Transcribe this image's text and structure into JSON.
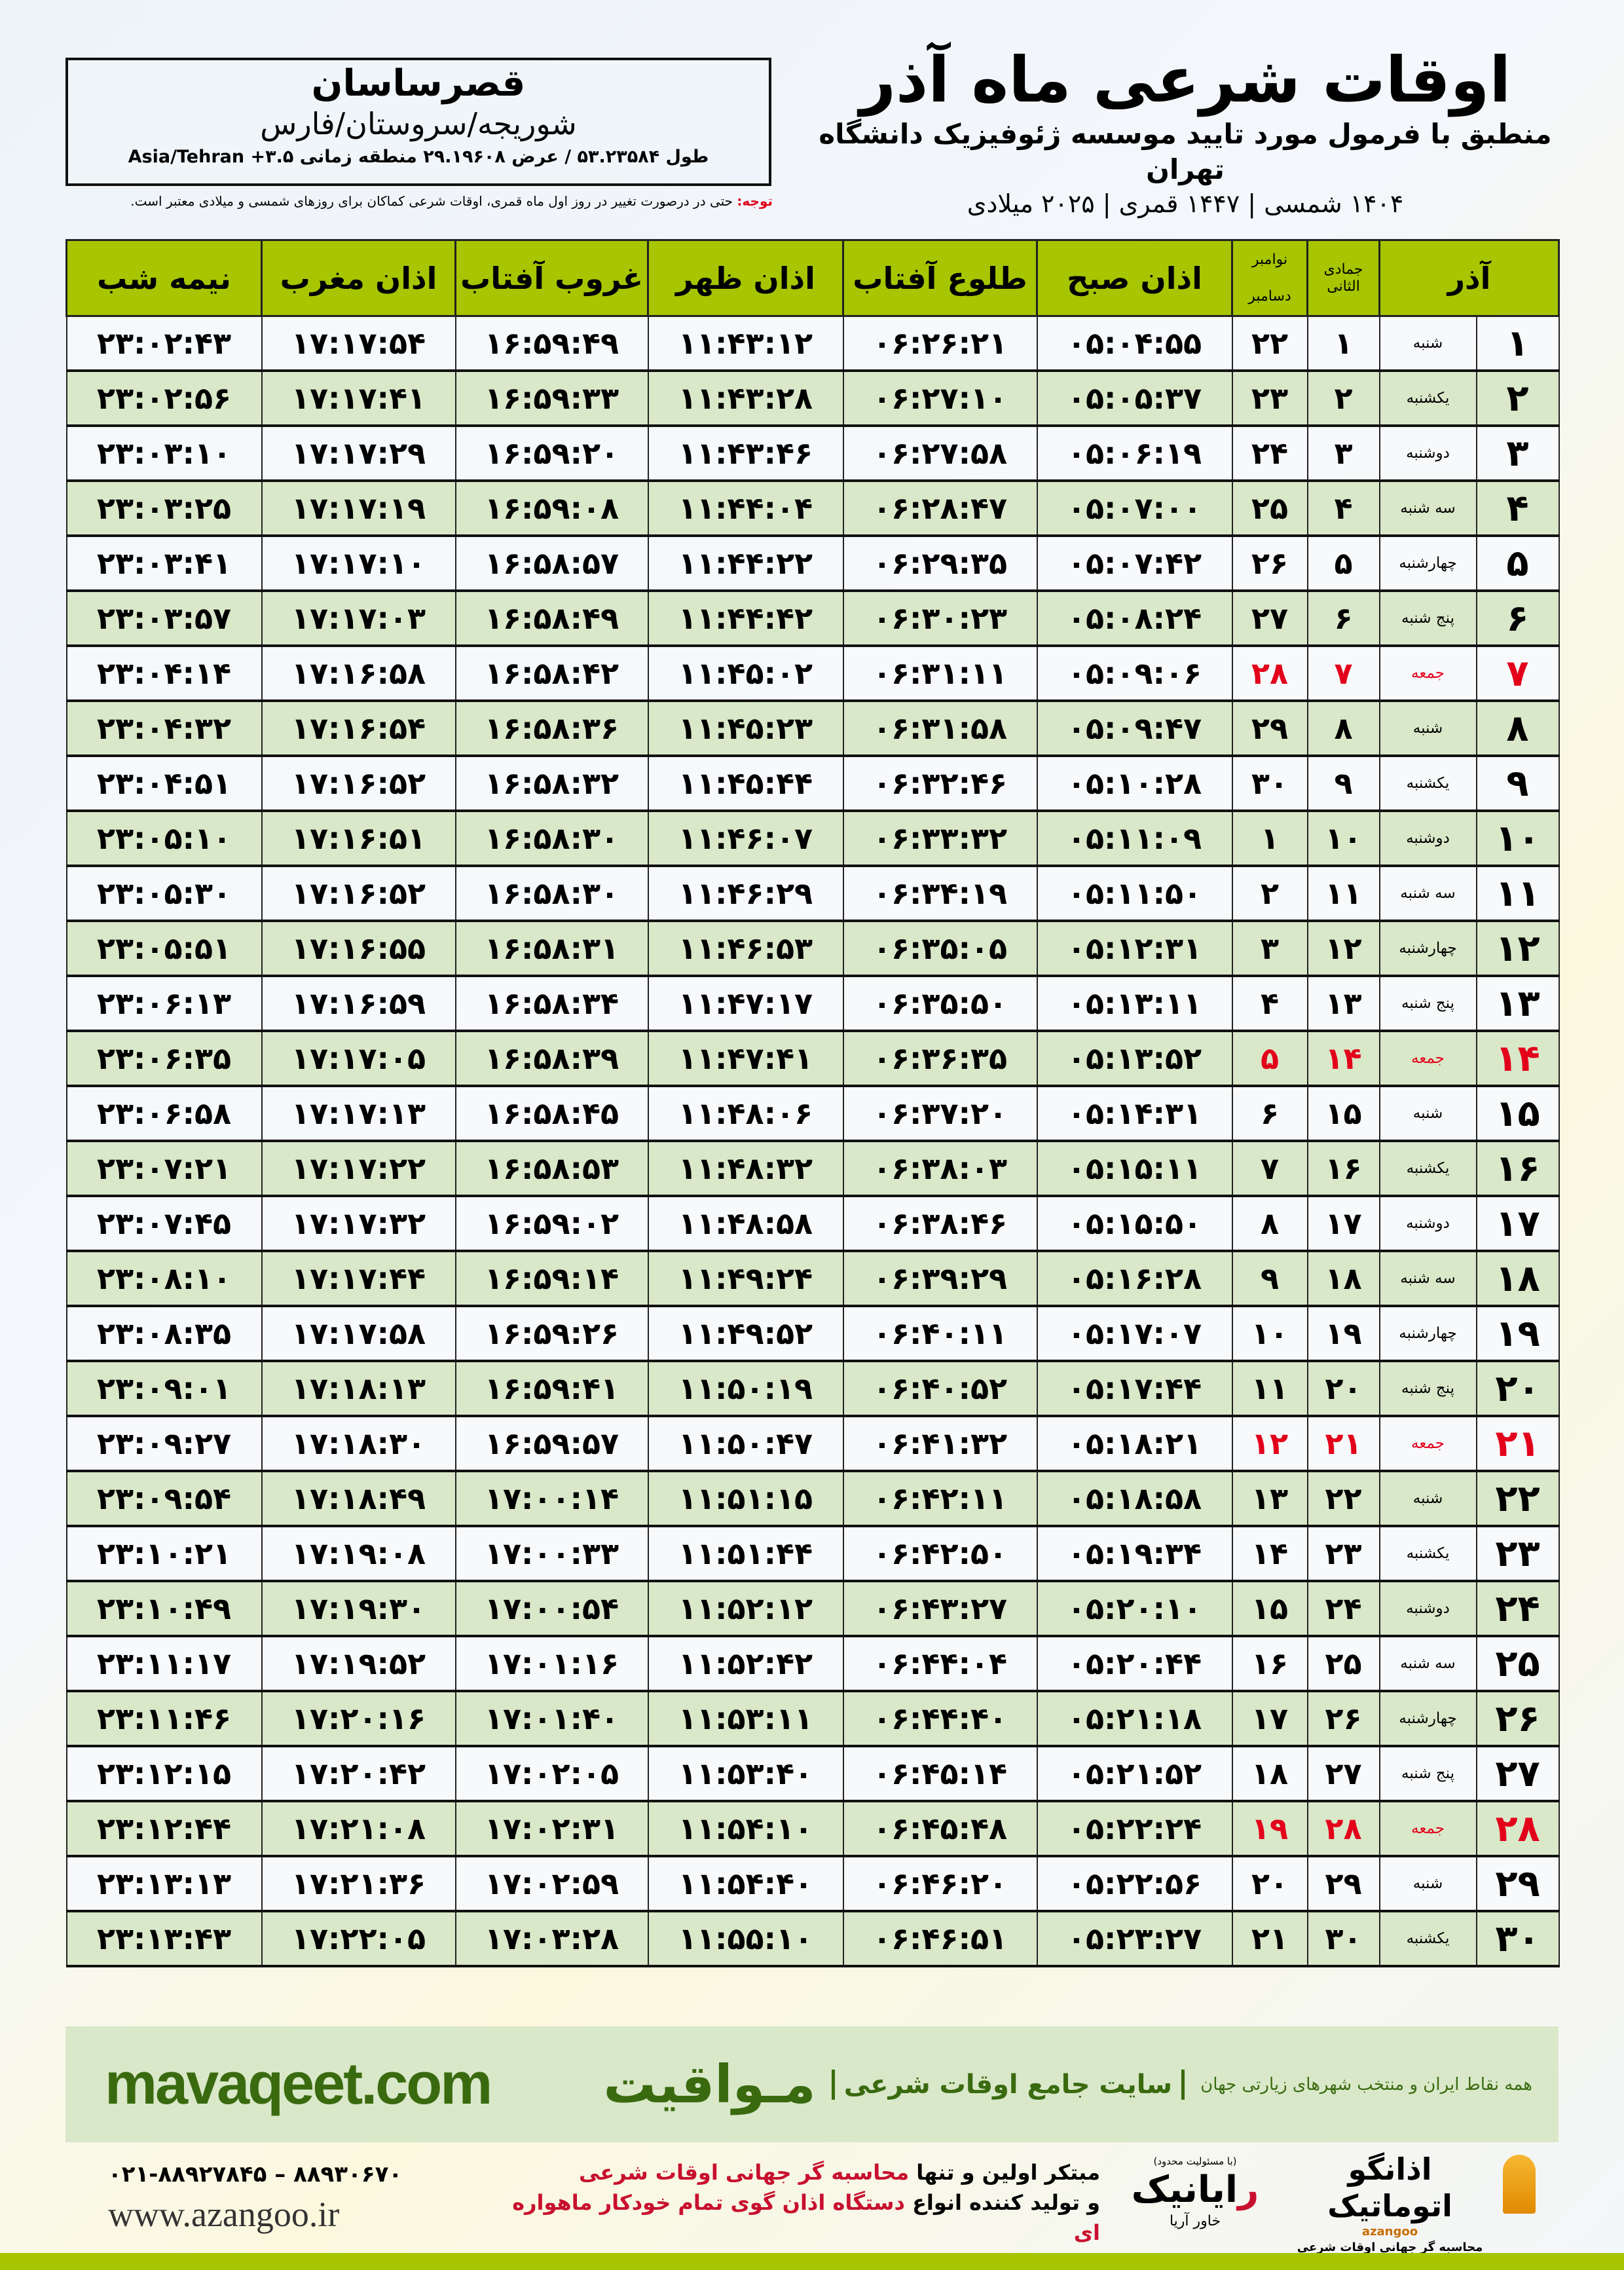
{
  "location": {
    "name": "قصرساسان",
    "region": "شوریجه/سروستان/فارس",
    "coords": "طول ۵۳.۲۳۵۸۴ / عرض ۲۹.۱۹۶۰۸ منطقه زمانی ۳.۵+ Asia/Tehran"
  },
  "header": {
    "title": "اوقات شرعی ماه آذر",
    "subtitle": "منطبق با فرمول مورد تایید موسسه ژئوفیزیک دانشگاه تهران",
    "date_line": "۱۴۰۴ شمسی | ۱۴۴۷ قمری | ۲۰۲۵ میلادی",
    "note_label": "توجه:",
    "note_text": " حتی در درصورت تغییر در روز اول ماه قمری، اوقات شرعی کماکان برای روزهای شمسی و میلادی معتبر است."
  },
  "table": {
    "columns": {
      "solar_month": "آذر",
      "hijri_month": "جمادی الثانی",
      "greg_month_1": "نوامبر",
      "greg_month_2": "دسامبر",
      "fajr": "اذان صبح",
      "sunrise": "طلوع آفتاب",
      "dhuhr": "اذان ظهر",
      "sunset": "غروب آفتاب",
      "maghrib": "اذان مغرب",
      "midnight": "نیمه شب"
    },
    "holiday_color": "#e3001b",
    "header_color": "#a7c500",
    "rows": [
      [
        "۱",
        "شنبه",
        "۱",
        "۲۲",
        "۰۵:۰۴:۵۵",
        "۰۶:۲۶:۲۱",
        "۱۱:۴۳:۱۲",
        "۱۶:۵۹:۴۹",
        "۱۷:۱۷:۵۴",
        "۲۳:۰۲:۴۳"
      ],
      [
        "۲",
        "یکشنبه",
        "۲",
        "۲۳",
        "۰۵:۰۵:۳۷",
        "۰۶:۲۷:۱۰",
        "۱۱:۴۳:۲۸",
        "۱۶:۵۹:۳۳",
        "۱۷:۱۷:۴۱",
        "۲۳:۰۲:۵۶"
      ],
      [
        "۳",
        "دوشنبه",
        "۳",
        "۲۴",
        "۰۵:۰۶:۱۹",
        "۰۶:۲۷:۵۸",
        "۱۱:۴۳:۴۶",
        "۱۶:۵۹:۲۰",
        "۱۷:۱۷:۲۹",
        "۲۳:۰۳:۱۰"
      ],
      [
        "۴",
        "سه شنبه",
        "۴",
        "۲۵",
        "۰۵:۰۷:۰۰",
        "۰۶:۲۸:۴۷",
        "۱۱:۴۴:۰۴",
        "۱۶:۵۹:۰۸",
        "۱۷:۱۷:۱۹",
        "۲۳:۰۳:۲۵"
      ],
      [
        "۵",
        "چهارشنبه",
        "۵",
        "۲۶",
        "۰۵:۰۷:۴۲",
        "۰۶:۲۹:۳۵",
        "۱۱:۴۴:۲۲",
        "۱۶:۵۸:۵۷",
        "۱۷:۱۷:۱۰",
        "۲۳:۰۳:۴۱"
      ],
      [
        "۶",
        "پنج شنبه",
        "۶",
        "۲۷",
        "۰۵:۰۸:۲۴",
        "۰۶:۳۰:۲۳",
        "۱۱:۴۴:۴۲",
        "۱۶:۵۸:۴۹",
        "۱۷:۱۷:۰۳",
        "۲۳:۰۳:۵۷"
      ],
      [
        "۷",
        "جمعه",
        "۷",
        "۲۸",
        "۰۵:۰۹:۰۶",
        "۰۶:۳۱:۱۱",
        "۱۱:۴۵:۰۲",
        "۱۶:۵۸:۴۲",
        "۱۷:۱۶:۵۸",
        "۲۳:۰۴:۱۴"
      ],
      [
        "۸",
        "شنبه",
        "۸",
        "۲۹",
        "۰۵:۰۹:۴۷",
        "۰۶:۳۱:۵۸",
        "۱۱:۴۵:۲۳",
        "۱۶:۵۸:۳۶",
        "۱۷:۱۶:۵۴",
        "۲۳:۰۴:۳۲"
      ],
      [
        "۹",
        "یکشنبه",
        "۹",
        "۳۰",
        "۰۵:۱۰:۲۸",
        "۰۶:۳۲:۴۶",
        "۱۱:۴۵:۴۴",
        "۱۶:۵۸:۳۲",
        "۱۷:۱۶:۵۲",
        "۲۳:۰۴:۵۱"
      ],
      [
        "۱۰",
        "دوشنبه",
        "۱۰",
        "۱",
        "۰۵:۱۱:۰۹",
        "۰۶:۳۳:۳۲",
        "۱۱:۴۶:۰۷",
        "۱۶:۵۸:۳۰",
        "۱۷:۱۶:۵۱",
        "۲۳:۰۵:۱۰"
      ],
      [
        "۱۱",
        "سه شنبه",
        "۱۱",
        "۲",
        "۰۵:۱۱:۵۰",
        "۰۶:۳۴:۱۹",
        "۱۱:۴۶:۲۹",
        "۱۶:۵۸:۳۰",
        "۱۷:۱۶:۵۲",
        "۲۳:۰۵:۳۰"
      ],
      [
        "۱۲",
        "چهارشنبه",
        "۱۲",
        "۳",
        "۰۵:۱۲:۳۱",
        "۰۶:۳۵:۰۵",
        "۱۱:۴۶:۵۳",
        "۱۶:۵۸:۳۱",
        "۱۷:۱۶:۵۵",
        "۲۳:۰۵:۵۱"
      ],
      [
        "۱۳",
        "پنج شنبه",
        "۱۳",
        "۴",
        "۰۵:۱۳:۱۱",
        "۰۶:۳۵:۵۰",
        "۱۱:۴۷:۱۷",
        "۱۶:۵۸:۳۴",
        "۱۷:۱۶:۵۹",
        "۲۳:۰۶:۱۳"
      ],
      [
        "۱۴",
        "جمعه",
        "۱۴",
        "۵",
        "۰۵:۱۳:۵۲",
        "۰۶:۳۶:۳۵",
        "۱۱:۴۷:۴۱",
        "۱۶:۵۸:۳۹",
        "۱۷:۱۷:۰۵",
        "۲۳:۰۶:۳۵"
      ],
      [
        "۱۵",
        "شنبه",
        "۱۵",
        "۶",
        "۰۵:۱۴:۳۱",
        "۰۶:۳۷:۲۰",
        "۱۱:۴۸:۰۶",
        "۱۶:۵۸:۴۵",
        "۱۷:۱۷:۱۳",
        "۲۳:۰۶:۵۸"
      ],
      [
        "۱۶",
        "یکشنبه",
        "۱۶",
        "۷",
        "۰۵:۱۵:۱۱",
        "۰۶:۳۸:۰۳",
        "۱۱:۴۸:۳۲",
        "۱۶:۵۸:۵۳",
        "۱۷:۱۷:۲۲",
        "۲۳:۰۷:۲۱"
      ],
      [
        "۱۷",
        "دوشنبه",
        "۱۷",
        "۸",
        "۰۵:۱۵:۵۰",
        "۰۶:۳۸:۴۶",
        "۱۱:۴۸:۵۸",
        "۱۶:۵۹:۰۲",
        "۱۷:۱۷:۳۲",
        "۲۳:۰۷:۴۵"
      ],
      [
        "۱۸",
        "سه شنبه",
        "۱۸",
        "۹",
        "۰۵:۱۶:۲۸",
        "۰۶:۳۹:۲۹",
        "۱۱:۴۹:۲۴",
        "۱۶:۵۹:۱۴",
        "۱۷:۱۷:۴۴",
        "۲۳:۰۸:۱۰"
      ],
      [
        "۱۹",
        "چهارشنبه",
        "۱۹",
        "۱۰",
        "۰۵:۱۷:۰۷",
        "۰۶:۴۰:۱۱",
        "۱۱:۴۹:۵۲",
        "۱۶:۵۹:۲۶",
        "۱۷:۱۷:۵۸",
        "۲۳:۰۸:۳۵"
      ],
      [
        "۲۰",
        "پنج شنبه",
        "۲۰",
        "۱۱",
        "۰۵:۱۷:۴۴",
        "۰۶:۴۰:۵۲",
        "۱۱:۵۰:۱۹",
        "۱۶:۵۹:۴۱",
        "۱۷:۱۸:۱۳",
        "۲۳:۰۹:۰۱"
      ],
      [
        "۲۱",
        "جمعه",
        "۲۱",
        "۱۲",
        "۰۵:۱۸:۲۱",
        "۰۶:۴۱:۳۲",
        "۱۱:۵۰:۴۷",
        "۱۶:۵۹:۵۷",
        "۱۷:۱۸:۳۰",
        "۲۳:۰۹:۲۷"
      ],
      [
        "۲۲",
        "شنبه",
        "۲۲",
        "۱۳",
        "۰۵:۱۸:۵۸",
        "۰۶:۴۲:۱۱",
        "۱۱:۵۱:۱۵",
        "۱۷:۰۰:۱۴",
        "۱۷:۱۸:۴۹",
        "۲۳:۰۹:۵۴"
      ],
      [
        "۲۳",
        "یکشنبه",
        "۲۳",
        "۱۴",
        "۰۵:۱۹:۳۴",
        "۰۶:۴۲:۵۰",
        "۱۱:۵۱:۴۴",
        "۱۷:۰۰:۳۳",
        "۱۷:۱۹:۰۸",
        "۲۳:۱۰:۲۱"
      ],
      [
        "۲۴",
        "دوشنبه",
        "۲۴",
        "۱۵",
        "۰۵:۲۰:۱۰",
        "۰۶:۴۳:۲۷",
        "۱۱:۵۲:۱۲",
        "۱۷:۰۰:۵۴",
        "۱۷:۱۹:۳۰",
        "۲۳:۱۰:۴۹"
      ],
      [
        "۲۵",
        "سه شنبه",
        "۲۵",
        "۱۶",
        "۰۵:۲۰:۴۴",
        "۰۶:۴۴:۰۴",
        "۱۱:۵۲:۴۲",
        "۱۷:۰۱:۱۶",
        "۱۷:۱۹:۵۲",
        "۲۳:۱۱:۱۷"
      ],
      [
        "۲۶",
        "چهارشنبه",
        "۲۶",
        "۱۷",
        "۰۵:۲۱:۱۸",
        "۰۶:۴۴:۴۰",
        "۱۱:۵۳:۱۱",
        "۱۷:۰۱:۴۰",
        "۱۷:۲۰:۱۶",
        "۲۳:۱۱:۴۶"
      ],
      [
        "۲۷",
        "پنج شنبه",
        "۲۷",
        "۱۸",
        "۰۵:۲۱:۵۲",
        "۰۶:۴۵:۱۴",
        "۱۱:۵۳:۴۰",
        "۱۷:۰۲:۰۵",
        "۱۷:۲۰:۴۲",
        "۲۳:۱۲:۱۵"
      ],
      [
        "۲۸",
        "جمعه",
        "۲۸",
        "۱۹",
        "۰۵:۲۲:۲۴",
        "۰۶:۴۵:۴۸",
        "۱۱:۵۴:۱۰",
        "۱۷:۰۲:۳۱",
        "۱۷:۲۱:۰۸",
        "۲۳:۱۲:۴۴"
      ],
      [
        "۲۹",
        "شنبه",
        "۲۹",
        "۲۰",
        "۰۵:۲۲:۵۶",
        "۰۶:۴۶:۲۰",
        "۱۱:۵۴:۴۰",
        "۱۷:۰۲:۵۹",
        "۱۷:۲۱:۳۶",
        "۲۳:۱۳:۱۳"
      ],
      [
        "۳۰",
        "یکشنبه",
        "۳۰",
        "۲۱",
        "۰۵:۲۳:۲۷",
        "۰۶:۴۶:۵۱",
        "۱۱:۵۵:۱۰",
        "۱۷:۰۳:۲۸",
        "۱۷:۲۲:۰۵",
        "۲۳:۱۳:۴۳"
      ]
    ]
  },
  "footer": {
    "mavaqeet_logo": "مـواقیت",
    "mavaqeet_desc": "سایت جامع اوقات شرعی",
    "mavaqeet_sub": "همه نقاط ایران و منتخب شهرهای زیارتی جهان",
    "mavaqeet_url": "mavaqeet.com",
    "brand_color": "#3a6a0f",
    "phone": "۰۲۱-۸۸۹۲۷۸۴۵ – ۸۸۹۳۰۶۷۰",
    "azangoo_url": "www.azangoo.ir",
    "promo_line1_a": "مبتکر اولین و تنها ",
    "promo_line1_b": "محاسبه گر جهانی اوقات شرعی",
    "promo_line2_a": "و تولید کننده انواع ",
    "promo_line2_b": "دستگاه اذان گوی تمام خودکار ماهواره ای",
    "raianik_note": "(با مسئولیت محدود)",
    "raianik_r": "ر",
    "raianik_rest": "ایانیک",
    "raianik_side": "خاور آریا",
    "azangoo_name": "اذانگو اتوماتیک",
    "azangoo_tag": "محاسبه گر جهانی اوقات شرعی",
    "azangoo_en": "azangoo"
  }
}
